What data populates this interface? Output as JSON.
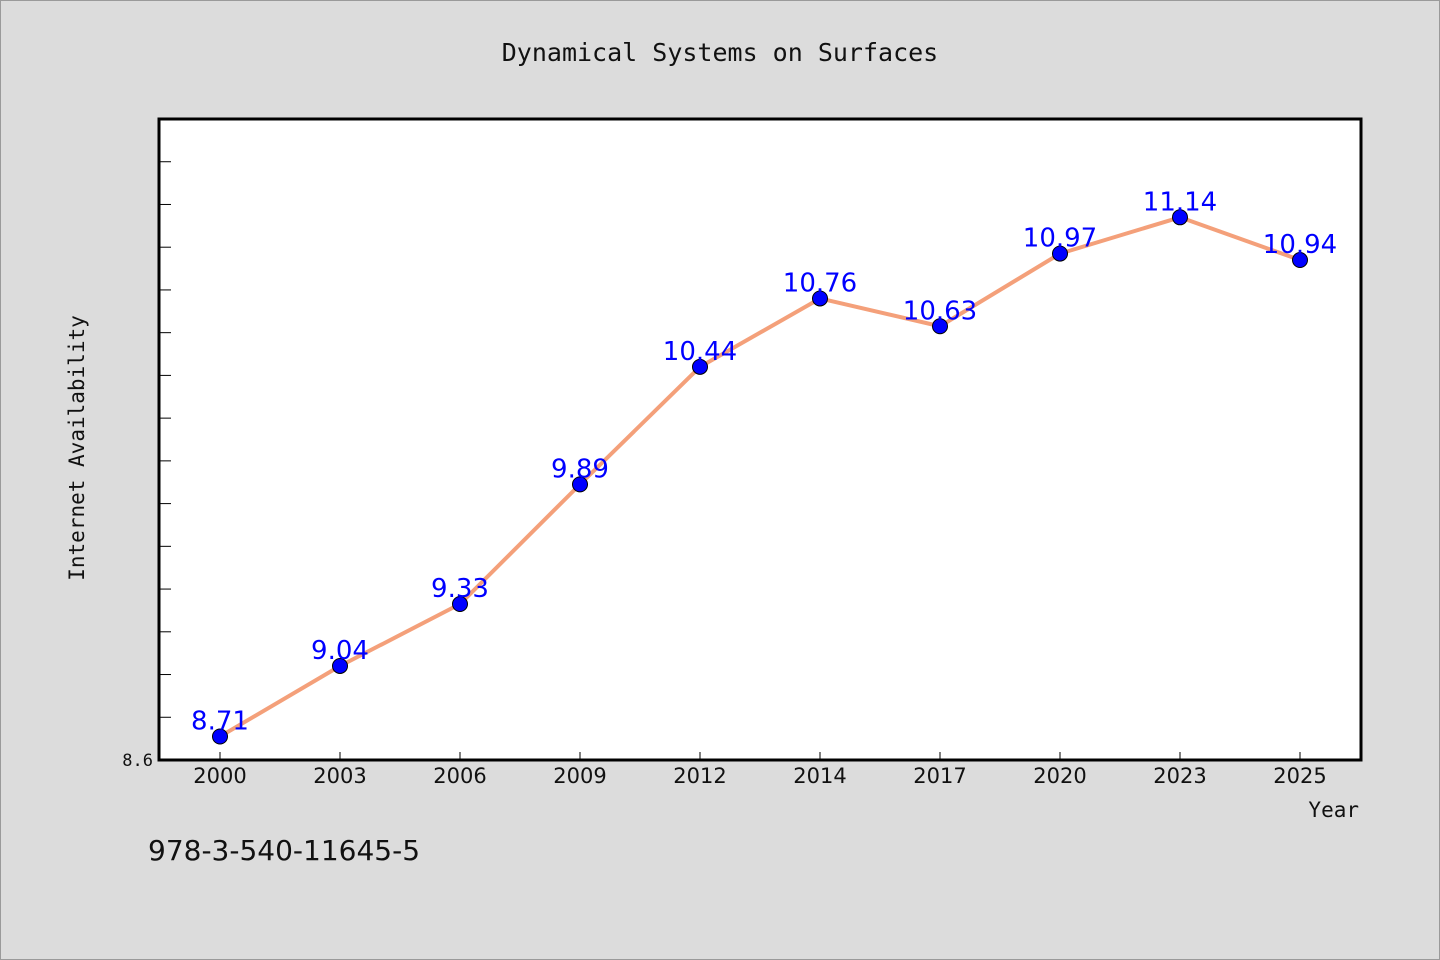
{
  "chart_data": {
    "type": "line",
    "title": "Dynamical Systems on Surfaces",
    "xlabel": "Year",
    "ylabel": "Internet Availability",
    "categories": [
      "2000",
      "2003",
      "2006",
      "2009",
      "2012",
      "2014",
      "2017",
      "2020",
      "2023",
      "2025"
    ],
    "series": [
      {
        "values": [
          8.71,
          9.04,
          9.33,
          9.89,
          10.44,
          10.76,
          10.63,
          10.97,
          11.14,
          10.94
        ]
      }
    ],
    "ylim": [
      8.6,
      11.6
    ],
    "y_tick_labels": [
      "8.6"
    ],
    "y_minor_step": 0.2,
    "grid": false,
    "legend": "none",
    "data_labels": true,
    "colors": {
      "line": "#f4a07a",
      "marker": "#0000ff",
      "label": "#0000ff",
      "background": "#dcdcdc",
      "plot_bg": "#ffffff"
    }
  },
  "footer": {
    "code": "978-3-540-11645-5"
  }
}
